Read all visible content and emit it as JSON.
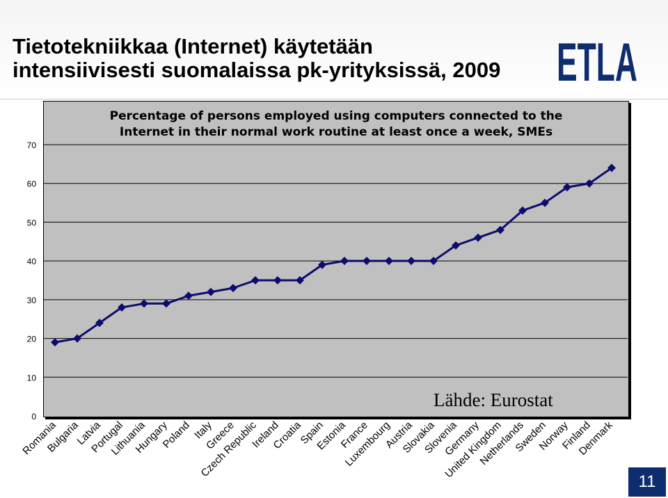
{
  "slide": {
    "title_line1": "Tietotekniikkaa (Internet) käytetään",
    "title_line2": "intensiivisesti suomalaissa pk-yrityksissä, 2009",
    "logo_text": "ETLA",
    "page_number": "11"
  },
  "chart_data": {
    "type": "line",
    "title_line1": "Percentage of persons employed using computers connected to the",
    "title_line2": "Internet in their normal work routine at least once a week, SMEs",
    "annotation": "Lähde: Eurostat",
    "categories": [
      "Romania",
      "Bulgaria",
      "Latvia",
      "Portugal",
      "Lithuania",
      "Hungary",
      "Poland",
      "Italy",
      "Greece",
      "Czech Republic",
      "Ireland",
      "Croatia",
      "Spain",
      "Estonia",
      "France",
      "Luxembourg",
      "Austria",
      "Slovakia",
      "Slovenia",
      "Germany",
      "United Kingdom",
      "Netherlands",
      "Sweden",
      "Norway",
      "Finland",
      "Denmark"
    ],
    "series": [
      {
        "values": [
          19,
          20,
          24,
          28,
          29,
          29,
          31,
          32,
          33,
          35,
          35,
          35,
          39,
          40,
          40,
          40,
          40,
          40,
          44,
          46,
          48,
          53,
          55,
          59,
          60,
          64
        ]
      }
    ],
    "y_ticks": [
      0,
      10,
      20,
      30,
      40,
      50,
      60,
      70
    ],
    "ylim": [
      0,
      70
    ],
    "grid": true,
    "colors": {
      "line": "#0c0c6e",
      "plot_bg": "#c0c0c0",
      "grid": "#000000",
      "accent": "#0e2d6e"
    }
  }
}
